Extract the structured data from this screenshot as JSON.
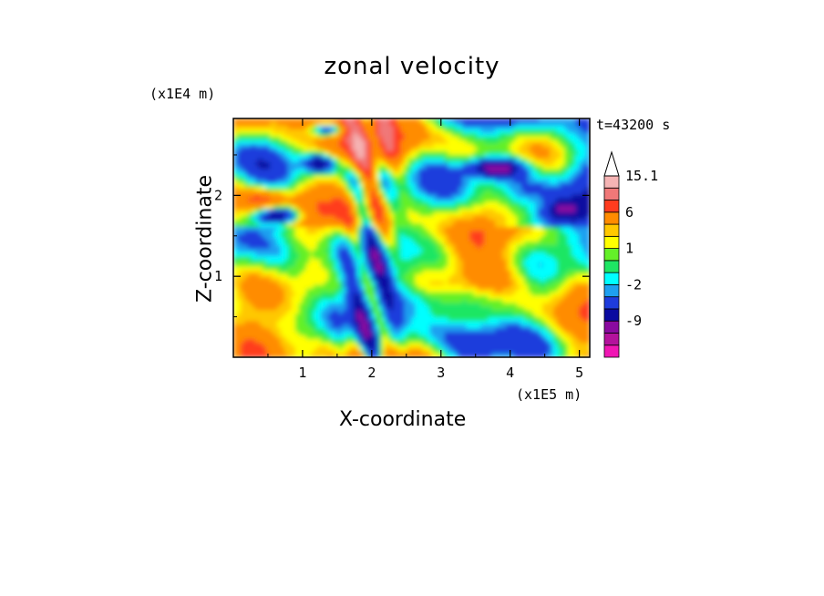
{
  "chart_data": {
    "type": "heatmap",
    "title": "zonal velocity",
    "xlabel": "X-coordinate",
    "ylabel": "Z-coordinate",
    "x_unit": "(x1E5 m)",
    "z_unit": "(x1E4 m)",
    "time_label": "t=43200 s",
    "xlim": [
      0,
      5.15
    ],
    "ylim": [
      0,
      2.95
    ],
    "x_ticks": [
      1,
      2,
      3,
      4,
      5
    ],
    "y_ticks": [
      1,
      2
    ],
    "colorbar": {
      "levels": [
        -15,
        -12,
        -9,
        -6,
        -3,
        -2,
        -1,
        0,
        1,
        2,
        3,
        6,
        9,
        12,
        15.1
      ],
      "labels": [
        {
          "value": 15.1,
          "text": "15.1"
        },
        {
          "value": 6,
          "text": "6"
        },
        {
          "value": 1,
          "text": "1"
        },
        {
          "value": -2,
          "text": "-2"
        },
        {
          "value": -9,
          "text": "-9"
        }
      ],
      "colors": [
        "#f016b4",
        "#b4129c",
        "#8a0aa0",
        "#0a0aa0",
        "#1e3cdc",
        "#1ea0f0",
        "#00ffff",
        "#1ee664",
        "#64f028",
        "#ffff00",
        "#ffc800",
        "#ff8c00",
        "#ff3c1e",
        "#f07878",
        "#f5b4b4",
        "#ffffff"
      ]
    },
    "field_description": "contoured zonal velocity field"
  }
}
